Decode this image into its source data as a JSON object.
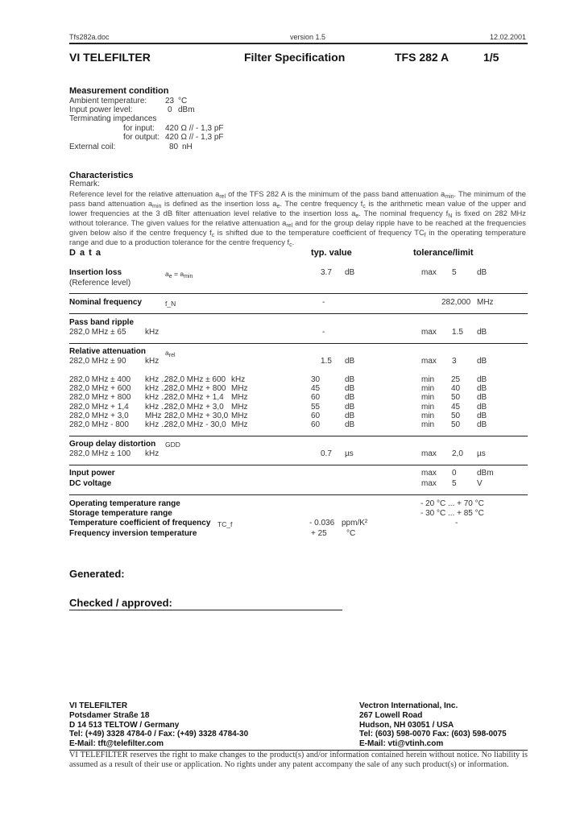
{
  "header": {
    "file": "Tfs282a.doc",
    "version": "version 1.5",
    "date": "12.02.2001"
  },
  "title": {
    "company": "VI TELEFILTER",
    "doc": "Filter Specification",
    "part": "TFS 282 A",
    "page": "1/5"
  },
  "measurement": {
    "heading": "Measurement condition",
    "rows": [
      {
        "label": "Ambient temperature:",
        "value": "23",
        "unit": "°C"
      },
      {
        "label": "Input power level:",
        "value": "0",
        "unit": "dBm"
      },
      {
        "label": "Terminating impedances",
        "value": "",
        "unit": ""
      },
      {
        "label": "for input:",
        "value": "420 Ω // - 1,3 pF",
        "unit": ""
      },
      {
        "label": "for output:",
        "value": "420 Ω // - 1,3 pF",
        "unit": ""
      },
      {
        "label": "External coil:",
        "value": "80",
        "unit": "nH"
      }
    ]
  },
  "characteristics": {
    "heading": "Characteristics",
    "remark_label": "Remark:",
    "remark": "Reference level for the relative attenuation a_rel of the TFS 282 A is the minimum of the pass band attenuation a_min. The minimum of the pass band attenuation a_min is defined as the insertion loss a_e. The centre frequency f_c is the arithmetic mean value of the upper and lower frequencies at the 3 dB filter attenuation level relative to the insertion loss a_e. The nominal frequency f_N is fixed on 282 MHz without tolerance. The given values for the relative attenuation a_rel and for the group delay ripple have to be reached at the frequencies given below also if the centre frequency f_c is shifted due to the temperature coefficient of frequency TC_f in the operating temperature range and due to a production tolerance for the centre frequency f_c."
  },
  "data": {
    "heading": "D a t a",
    "typ_heading": "typ. value",
    "tol_heading": "tolerance/limit",
    "insertion": {
      "label": "Insertion loss",
      "sub": "(Reference level)",
      "symbol": "a_e = a_min",
      "typ": "3.7",
      "typ_unit": "dB",
      "lim_kind": "max",
      "lim": "5",
      "lim_unit": "dB"
    },
    "nominal": {
      "label": "Nominal frequency",
      "symbol": "f_N",
      "typ": "-",
      "lim": "282,000",
      "lim_unit": "MHz"
    },
    "ripple": {
      "label": "Pass band ripple",
      "cond": "282,0 MHz  ±  65",
      "cond_unit": "kHz",
      "typ": "-",
      "lim_kind": "max",
      "lim": "1.5",
      "lim_unit": "dB"
    },
    "relatt": {
      "label": "Relative attenuation",
      "symbol": "a_rel",
      "cond": "282,0 MHz  ±  90",
      "cond_unit": "kHz",
      "typ": "1.5",
      "typ_unit": "dB",
      "lim_kind": "max",
      "lim": "3",
      "lim_unit": "dB",
      "rows": [
        {
          "f1": "282,0 MHz  ± 400",
          "u1": "kHz ...",
          "f2": "282,0 MHz  ± 600",
          "u2": "kHz",
          "typ": "30",
          "typ_unit": "dB",
          "kind": "min",
          "lim": "25",
          "lim_unit": "dB"
        },
        {
          "f1": "282,0 MHz  + 600",
          "u1": "kHz ...",
          "f2": "282,0 MHz  + 800",
          "u2": "MHz",
          "typ": "45",
          "typ_unit": "dB",
          "kind": "min",
          "lim": "40",
          "lim_unit": "dB"
        },
        {
          "f1": "282,0 MHz  + 800",
          "u1": "kHz ...",
          "f2": "282,0 MHz  +     1,4",
          "u2": "MHz",
          "typ": "60",
          "typ_unit": "dB",
          "kind": "min",
          "lim": "50",
          "lim_unit": "dB"
        },
        {
          "f1": "282,0 MHz  +     1,4",
          "u1": "kHz ...",
          "f2": "282,0 MHz  +     3,0",
          "u2": "MHz",
          "typ": "55",
          "typ_unit": "dB",
          "kind": "min",
          "lim": "45",
          "lim_unit": "dB"
        },
        {
          "f1": "282,0 MHz  +     3,0",
          "u1": "MHz ...",
          "f2": "282,0 MHz  +   30,0",
          "u2": "MHz",
          "typ": "60",
          "typ_unit": "dB",
          "kind": "min",
          "lim": "50",
          "lim_unit": "dB"
        },
        {
          "f1": "282,0 MHz  - 800",
          "u1": "kHz ...",
          "f2": "282,0 MHz  -   30,0",
          "u2": "MHz",
          "typ": "60",
          "typ_unit": "dB",
          "kind": "min",
          "lim": "50",
          "lim_unit": "dB"
        }
      ]
    },
    "gdd": {
      "label": "Group delay distortion",
      "symbol": "GDD",
      "cond": "282,0 MHz  ± 100",
      "cond_unit": "kHz",
      "typ": "0.7",
      "typ_unit": "µs",
      "lim_kind": "max",
      "lim": "2,0",
      "lim_unit": "µs"
    },
    "input_power": {
      "label": "Input power",
      "lim_kind": "max",
      "lim": "0",
      "lim_unit": "dBm"
    },
    "dc_voltage": {
      "label": "DC voltage",
      "lim_kind": "max",
      "lim": "5",
      "lim_unit": "V"
    },
    "op_temp": {
      "label": "Operating temperature range",
      "lim": "- 20 °C ... + 70 °C"
    },
    "st_temp": {
      "label": "Storage temperature range",
      "lim": "- 30 °C ... + 85 °C"
    },
    "tc": {
      "label": "Temperature coefficient of frequency",
      "symbol": "TC_f",
      "typ": "- 0.036",
      "typ_unit": "ppm/K²",
      "lim": "-"
    },
    "inv": {
      "label": "Frequency inversion temperature",
      "typ": "+ 25",
      "typ_unit": "°C"
    }
  },
  "signoff": {
    "generated": "Generated:",
    "checked": "Checked / approved:"
  },
  "footer": {
    "left": [
      "VI TELEFILTER",
      "Potsdamer Straße 18",
      "D 14 513 TELTOW / Germany",
      "Tel: (+49) 3328 4784-0 / Fax: (+49) 3328 4784-30",
      "E-Mail: tft@telefilter.com"
    ],
    "right": [
      "Vectron International, Inc.",
      "267 Lowell Road",
      "Hudson, NH 03051 / USA",
      "Tel: (603) 598-0070 Fax: (603) 598-0075",
      "E-Mail: vti@vtinh.com"
    ],
    "disclaimer": "VI TELEFILTER reserves the right to make changes to the product(s) and/or information contained herein without notice. No liability is assumed as a result of their use or application. No rights under any patent accompany the sale of any such product(s) or information."
  }
}
